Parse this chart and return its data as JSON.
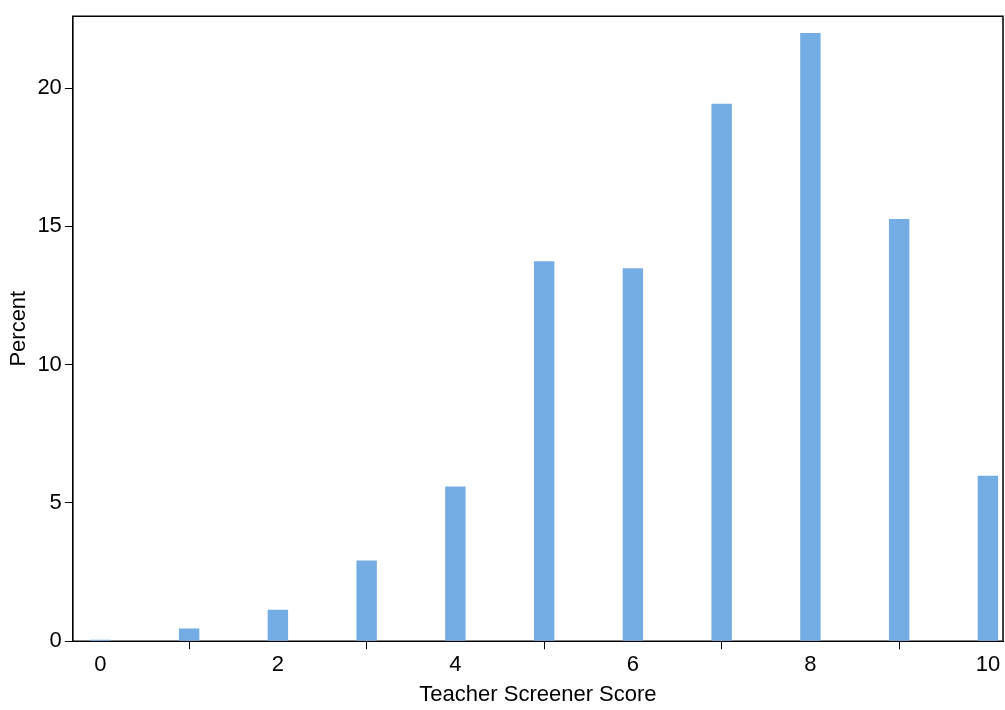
{
  "chart_data": {
    "type": "bar",
    "xlabel": "Teacher Screener Score",
    "ylabel": "Percent",
    "x": [
      0,
      1,
      2,
      3,
      4,
      5,
      6,
      7,
      8,
      9,
      10
    ],
    "values": [
      0.05,
      0.46,
      1.14,
      2.92,
      5.59,
      13.74,
      13.49,
      19.43,
      21.99,
      15.27,
      5.98
    ],
    "color": "#74ace4",
    "xlim": [
      -0.31,
      10.17
    ],
    "xticks": [
      0,
      2,
      4,
      6,
      8,
      10
    ],
    "ylim": [
      0,
      22.6
    ],
    "yticks": [
      0,
      5,
      10,
      15,
      20
    ],
    "grid": false,
    "legend": false
  }
}
